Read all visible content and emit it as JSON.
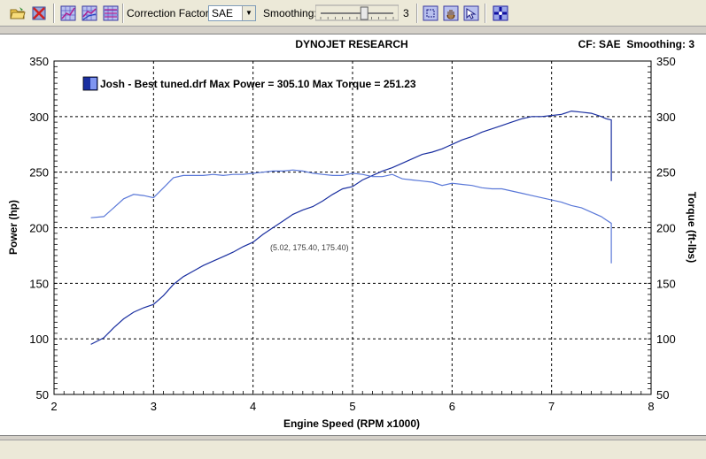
{
  "toolbar": {
    "icons": [
      "open-folder-icon",
      "delete-run-icon",
      "graph-view-1-icon",
      "graph-view-2-icon",
      "graph-view-3-icon",
      "zoom-icon",
      "pan-hand-icon",
      "select-icon",
      "crosshair-icon"
    ],
    "correction_factor_label": "Correction Factor:",
    "correction_factor_value": "SAE",
    "smoothing_label": "Smoothing:",
    "smoothing_value": "3",
    "smoothing_level": 3
  },
  "chart_header": {
    "title": "DYNOJET RESEARCH",
    "info": "CF: SAE  Smoothing: 3"
  },
  "legend": {
    "text": "Josh - Best tuned.drf Max Power = 305.10 Max Torque = 251.23"
  },
  "cursor_readout": "(5.02, 175.40, 175.40)",
  "colors": {
    "series": "#1a2fa0",
    "grid": "#000000",
    "plot_bg": "#ffffff"
  },
  "chart_data": {
    "type": "line",
    "title": "DYNOJET RESEARCH",
    "xlabel": "Engine Speed (RPM x1000)",
    "ylabel": "Power (hp)",
    "y2label": "Torque (ft-lbs)",
    "xlim": [
      2,
      8
    ],
    "ylim": [
      50,
      350
    ],
    "y2lim": [
      50,
      350
    ],
    "xticks": [
      "2",
      "3",
      "4",
      "5",
      "6",
      "7",
      "8"
    ],
    "yticks": [
      "50",
      "100",
      "150",
      "200",
      "250",
      "300",
      "350"
    ],
    "grid": true,
    "legend_position": "top-left",
    "series": [
      {
        "name": "Power",
        "x": [
          2.37,
          2.5,
          2.6,
          2.7,
          2.8,
          2.9,
          3.0,
          3.1,
          3.2,
          3.3,
          3.4,
          3.5,
          3.6,
          3.7,
          3.8,
          3.9,
          4.0,
          4.1,
          4.2,
          4.3,
          4.4,
          4.5,
          4.6,
          4.7,
          4.8,
          4.9,
          5.0,
          5.1,
          5.2,
          5.3,
          5.4,
          5.5,
          5.6,
          5.7,
          5.8,
          5.9,
          6.0,
          6.1,
          6.2,
          6.3,
          6.4,
          6.5,
          6.6,
          6.7,
          6.8,
          6.9,
          7.0,
          7.1,
          7.2,
          7.3,
          7.4,
          7.5,
          7.55,
          7.6,
          7.6
        ],
        "values": [
          95,
          101,
          110,
          118,
          124,
          128,
          131,
          139,
          149,
          156,
          161,
          166,
          170,
          174,
          178,
          183,
          187,
          194,
          200,
          206,
          212,
          216,
          219,
          224,
          230,
          235,
          237,
          243,
          247,
          251,
          254,
          258,
          262,
          266,
          268,
          271,
          275,
          279,
          282,
          286,
          289,
          292,
          295,
          298,
          300,
          300,
          301,
          302,
          305,
          304,
          303,
          300,
          298,
          297,
          242
        ]
      },
      {
        "name": "Torque",
        "x": [
          2.37,
          2.5,
          2.6,
          2.7,
          2.8,
          2.9,
          3.0,
          3.1,
          3.2,
          3.3,
          3.4,
          3.5,
          3.6,
          3.7,
          3.8,
          3.9,
          4.0,
          4.1,
          4.2,
          4.3,
          4.4,
          4.5,
          4.6,
          4.7,
          4.8,
          4.9,
          5.0,
          5.1,
          5.2,
          5.3,
          5.4,
          5.5,
          5.6,
          5.7,
          5.8,
          5.9,
          6.0,
          6.1,
          6.2,
          6.3,
          6.4,
          6.5,
          6.6,
          6.7,
          6.8,
          6.9,
          7.0,
          7.1,
          7.2,
          7.3,
          7.4,
          7.5,
          7.55,
          7.6,
          7.6
        ],
        "values": [
          209,
          210,
          218,
          226,
          230,
          229,
          227,
          236,
          245,
          247,
          247,
          247,
          248,
          247,
          248,
          248,
          249,
          250,
          251,
          251,
          252,
          251,
          249,
          248,
          247,
          247,
          249,
          248,
          246,
          246,
          248,
          244,
          243,
          242,
          241,
          238,
          240,
          239,
          238,
          236,
          235,
          235,
          233,
          231,
          229,
          227,
          225,
          223,
          220,
          218,
          214,
          210,
          207,
          204,
          168
        ]
      }
    ]
  }
}
